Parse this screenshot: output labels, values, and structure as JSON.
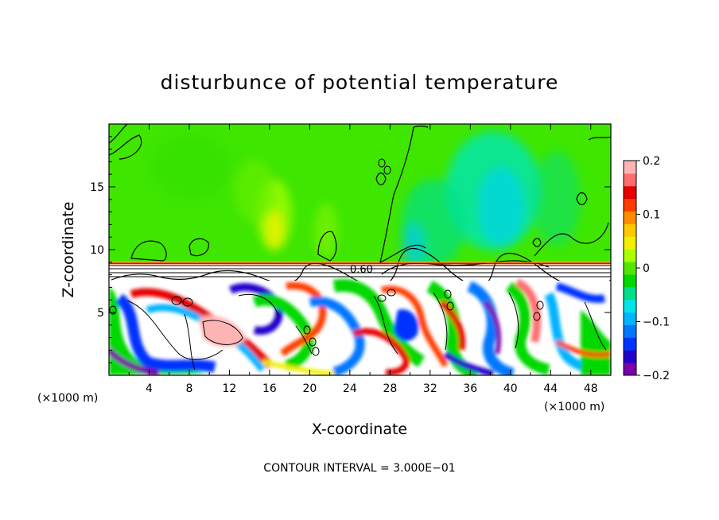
{
  "chart_data": {
    "type": "heatmap",
    "title": "disturbunce of potential temperature",
    "xlabel": "X-coordinate",
    "ylabel": "Z-coordinate",
    "x_unit_left": "(×1000 m)",
    "x_unit_right": "(×1000 m)",
    "xlim": [
      0,
      50
    ],
    "ylim": [
      0,
      20
    ],
    "x_ticks": [
      4,
      8,
      12,
      16,
      20,
      24,
      28,
      32,
      36,
      40,
      44,
      48
    ],
    "y_ticks": [
      5,
      10,
      15
    ],
    "colorbar": {
      "ticks": [
        0.2,
        0.1,
        0,
        -0.1,
        -0.2
      ],
      "tick_labels": [
        "0.2",
        "0.1",
        "0",
        "−0.1",
        "−0.2"
      ],
      "range": [
        -0.2,
        0.2
      ],
      "colors": [
        "#7a00a8",
        "#2200cc",
        "#0033ff",
        "#0077ff",
        "#00b4ff",
        "#00e6e6",
        "#00e08a",
        "#00d800",
        "#55e600",
        "#aaff00",
        "#f0f000",
        "#ffc800",
        "#ff8c00",
        "#ff3c00",
        "#e60000",
        "#ff6e6e",
        "#ffb4b4"
      ]
    },
    "contour_label": "0.60",
    "footer": "CONTOUR INTERVAL = 3.000E−01",
    "colors": {
      "upper_field": "#33e600",
      "lower_white": "#ffffff",
      "axis": "#000000"
    }
  }
}
